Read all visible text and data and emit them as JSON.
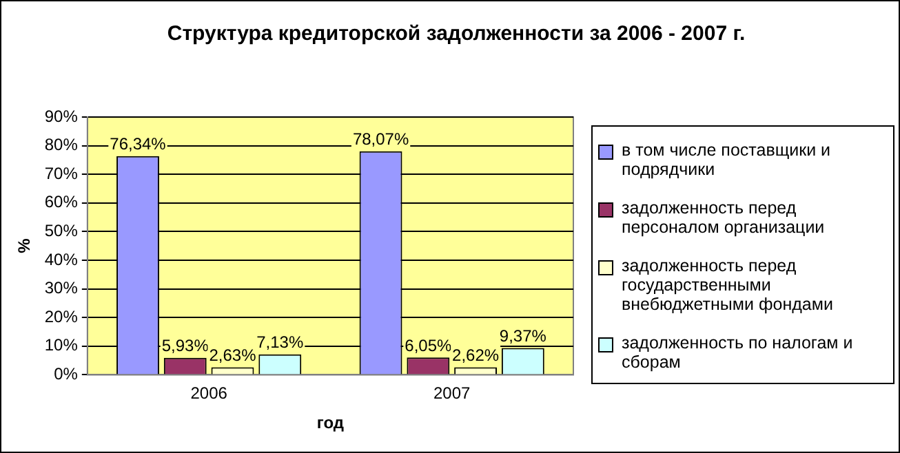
{
  "chart_data": {
    "type": "bar",
    "title": "Структура кредиторской задолженности за 2006 - 2007 г.",
    "xlabel": "год",
    "ylabel": "%",
    "categories": [
      "2006",
      "2007"
    ],
    "series": [
      {
        "name": "в том числе поставщики и подрядчики",
        "color": "#9999ff",
        "values": [
          76.34,
          78.07
        ],
        "value_labels": [
          "76,34%",
          "78,07%"
        ]
      },
      {
        "name": "задолженность перед персоналом организации",
        "color": "#993366",
        "values": [
          5.93,
          6.05
        ],
        "value_labels": [
          "5,93%",
          "6,05%"
        ]
      },
      {
        "name": "задолженность перед государственными внебюджетными фондами",
        "color": "#ffffcc",
        "values": [
          2.63,
          2.62
        ],
        "value_labels": [
          "2,63%",
          "2,62%"
        ]
      },
      {
        "name": "задолженность по налогам и сборам",
        "color": "#ccffff",
        "values": [
          7.13,
          9.37
        ],
        "value_labels": [
          "7,13%",
          "9,37%"
        ]
      }
    ],
    "ylim": [
      0,
      90
    ],
    "yticks": [
      {
        "value": 0,
        "label": "0%"
      },
      {
        "value": 10,
        "label": "10%"
      },
      {
        "value": 20,
        "label": "20%"
      },
      {
        "value": 30,
        "label": "30%"
      },
      {
        "value": 40,
        "label": "40%"
      },
      {
        "value": 50,
        "label": "50%"
      },
      {
        "value": 60,
        "label": "60%"
      },
      {
        "value": 70,
        "label": "70%"
      },
      {
        "value": 80,
        "label": "80%"
      },
      {
        "value": 90,
        "label": "90%"
      }
    ],
    "grid": "y",
    "legend": "right"
  }
}
